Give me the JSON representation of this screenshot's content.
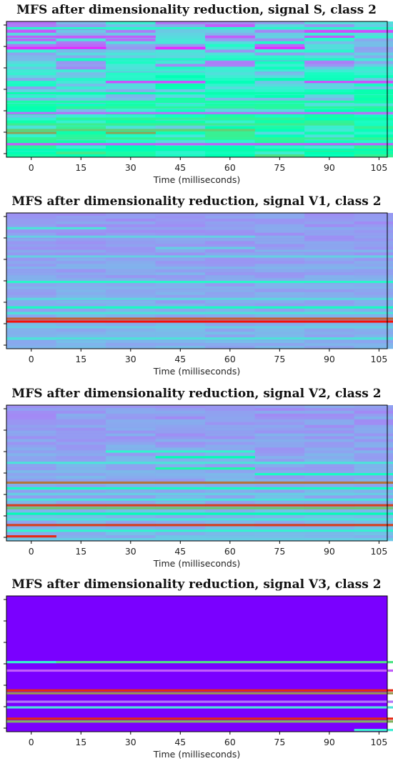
{
  "chart_data": [
    {
      "type": "heatmap",
      "title": "MFS after dimensionality reduction, signal S, class 2",
      "xlabel": "Time (milliseconds)",
      "ylabel": "",
      "xticks": [
        0,
        15,
        30,
        45,
        60,
        75,
        90,
        105
      ],
      "xlim": [
        -7.5,
        107.5
      ],
      "frame_times": [
        0,
        15,
        30,
        45,
        60,
        75,
        90,
        105
      ],
      "colormap": "rainbow",
      "base_color": "#3b63ff",
      "row_count": 48,
      "seed": 11,
      "bands": [
        {
          "row": 2,
          "value": 0.42,
          "cols": [
            0,
            1,
            2,
            3,
            4,
            5,
            6,
            7
          ]
        },
        {
          "row": 5,
          "value": 0.12,
          "cols": [
            0,
            2,
            4,
            6
          ]
        },
        {
          "row": 9,
          "value": 0.05,
          "cols": [
            0,
            1,
            3,
            5
          ]
        },
        {
          "row": 13,
          "value": 0.45,
          "cols": [
            1,
            2,
            3,
            4,
            5,
            6
          ]
        },
        {
          "row": 17,
          "value": 0.38,
          "cols": [
            0,
            1,
            2,
            3,
            4,
            5,
            6,
            7
          ]
        },
        {
          "row": 21,
          "value": 0.1,
          "cols": [
            2,
            3,
            6,
            7
          ]
        },
        {
          "row": 25,
          "value": 0.52,
          "cols": [
            0,
            1,
            2,
            3,
            4,
            5,
            6,
            7
          ]
        },
        {
          "row": 28,
          "value": 0.55,
          "cols": [
            0,
            1,
            2,
            3,
            4,
            5,
            6,
            7
          ]
        },
        {
          "row": 30,
          "value": 0.58,
          "cols": [
            1,
            2,
            3,
            4,
            5,
            6,
            7
          ]
        },
        {
          "row": 32,
          "value": 0.15,
          "cols": [
            0,
            1,
            2,
            3,
            4,
            5,
            6,
            7
          ]
        },
        {
          "row": 34,
          "value": 0.6,
          "cols": [
            1,
            2,
            3,
            4,
            5
          ]
        },
        {
          "row": 36,
          "value": 0.62,
          "cols": [
            0,
            1,
            2,
            3,
            4,
            5,
            6
          ]
        },
        {
          "row": 38,
          "value": 0.7,
          "cols": [
            0,
            1,
            2,
            3,
            4
          ]
        },
        {
          "row": 39,
          "value": 0.78,
          "cols": [
            0,
            2
          ]
        },
        {
          "row": 41,
          "value": 0.6,
          "cols": [
            0,
            1,
            2,
            3,
            4,
            5,
            6,
            7
          ]
        },
        {
          "row": 43,
          "value": 0.12,
          "cols": [
            0,
            1,
            2,
            3,
            4,
            5,
            6,
            7
          ]
        },
        {
          "row": 45,
          "value": 0.5,
          "cols": [
            0,
            1,
            2,
            3,
            4,
            5,
            6,
            7
          ]
        }
      ],
      "noise_level": 0.32
    },
    {
      "type": "heatmap",
      "title": "MFS after dimensionality reduction, signal V1, class  2",
      "xlabel": "Time (milliseconds)",
      "ylabel": "",
      "xticks": [
        0,
        15,
        30,
        45,
        60,
        75,
        90,
        105
      ],
      "xlim": [
        -7.5,
        107.5
      ],
      "frame_times": [
        0,
        15,
        30,
        45,
        60,
        75,
        90,
        105
      ],
      "colormap": "rainbow",
      "base_color": "#5b3cf5",
      "row_count": 48,
      "seed": 23,
      "bands": [
        {
          "row": 5,
          "value": 0.35,
          "cols": [
            0,
            1
          ]
        },
        {
          "row": 8,
          "value": 0.3,
          "cols": [
            0,
            1,
            2,
            3,
            4
          ]
        },
        {
          "row": 12,
          "value": 0.3,
          "cols": [
            3,
            4
          ]
        },
        {
          "row": 13,
          "value": 0.25,
          "cols": [
            5,
            6,
            7
          ]
        },
        {
          "row": 15,
          "value": 0.3,
          "cols": [
            0,
            1,
            2,
            3,
            4,
            5,
            6,
            7
          ]
        },
        {
          "row": 19,
          "value": 0.25,
          "cols": [
            0,
            1,
            2,
            3,
            4,
            5,
            6,
            7
          ]
        },
        {
          "row": 24,
          "value": 0.42,
          "cols": [
            0,
            1,
            2,
            3,
            4,
            5,
            6,
            7
          ]
        },
        {
          "row": 26,
          "value": 0.25,
          "cols": [
            0,
            1,
            2,
            3,
            4,
            5,
            6,
            7
          ]
        },
        {
          "row": 30,
          "value": 0.32,
          "cols": [
            0,
            1,
            2,
            3,
            4,
            5,
            6,
            7
          ]
        },
        {
          "row": 33,
          "value": 0.45,
          "cols": [
            0,
            1,
            2,
            3,
            4,
            5,
            6,
            7
          ]
        },
        {
          "row": 35,
          "value": 0.35,
          "cols": [
            0,
            1,
            2,
            3,
            4,
            5,
            6,
            7
          ]
        },
        {
          "row": 37,
          "value": 0.88,
          "cols": [
            0,
            1,
            2,
            3,
            4,
            5,
            6,
            7
          ]
        },
        {
          "row": 38,
          "value": 0.98,
          "cols": [
            0,
            1,
            2,
            3,
            4,
            5,
            6,
            7
          ]
        },
        {
          "row": 40,
          "value": 0.3,
          "cols": [
            0,
            1,
            2,
            3,
            4,
            5,
            6,
            7
          ]
        },
        {
          "row": 44,
          "value": 0.35,
          "cols": [
            0,
            1,
            2,
            3,
            4,
            5,
            6,
            7
          ]
        }
      ],
      "noise_level": 0.05
    },
    {
      "type": "heatmap",
      "title": "MFS after dimensionality reduction, signal V2, class 2",
      "xlabel": "Time (milliseconds)",
      "ylabel": "",
      "xticks": [
        0,
        15,
        30,
        45,
        60,
        75,
        90,
        105
      ],
      "xlim": [
        -7.5,
        107.5
      ],
      "frame_times": [
        0,
        15,
        30,
        45,
        60,
        75,
        90,
        105
      ],
      "colormap": "rainbow",
      "base_color": "#3f5ef8",
      "row_count": 48,
      "seed": 37,
      "bands": [
        {
          "row": 16,
          "value": 0.4,
          "cols": [
            2,
            3,
            4
          ]
        },
        {
          "row": 18,
          "value": 0.5,
          "cols": [
            3,
            4
          ]
        },
        {
          "row": 20,
          "value": 0.35,
          "cols": [
            0,
            1,
            2,
            3,
            4,
            5,
            6,
            7
          ]
        },
        {
          "row": 22,
          "value": 0.55,
          "cols": [
            3,
            4
          ]
        },
        {
          "row": 24,
          "value": 0.45,
          "cols": [
            5,
            6,
            7
          ]
        },
        {
          "row": 27,
          "value": 0.85,
          "cols": [
            0,
            1,
            2,
            3,
            4,
            5,
            6,
            7
          ]
        },
        {
          "row": 29,
          "value": 0.45,
          "cols": [
            0,
            1,
            2,
            3,
            4,
            5,
            6,
            7
          ]
        },
        {
          "row": 31,
          "value": 0.3,
          "cols": [
            0,
            1,
            2,
            3,
            4,
            5,
            6,
            7
          ]
        },
        {
          "row": 33,
          "value": 0.35,
          "cols": [
            0,
            1,
            2,
            3,
            4,
            5,
            6,
            7
          ]
        },
        {
          "row": 35,
          "value": 0.92,
          "cols": [
            0,
            1,
            2,
            3,
            4,
            5,
            6,
            7
          ]
        },
        {
          "row": 36,
          "value": 0.72,
          "cols": [
            0,
            1,
            2,
            3,
            4,
            5,
            6,
            7
          ]
        },
        {
          "row": 38,
          "value": 0.5,
          "cols": [
            0,
            1,
            2,
            3,
            4,
            5,
            6,
            7
          ]
        },
        {
          "row": 40,
          "value": 0.35,
          "cols": [
            0,
            1,
            2,
            3,
            4,
            5,
            6,
            7
          ]
        },
        {
          "row": 42,
          "value": 0.92,
          "cols": [
            0,
            1,
            2,
            3,
            4,
            5,
            6,
            7
          ]
        },
        {
          "row": 44,
          "value": 0.4,
          "cols": [
            0,
            1,
            2,
            3,
            4,
            5,
            6,
            7
          ]
        },
        {
          "row": 46,
          "value": 0.95,
          "cols": [
            0
          ]
        },
        {
          "row": 47,
          "value": 0.3,
          "cols": [
            1,
            2,
            3,
            4,
            5,
            6,
            7
          ]
        }
      ],
      "noise_level": 0.06
    },
    {
      "type": "heatmap",
      "title": "MFS after dimensionality reduction, signal V3, class 2",
      "xlabel": "Time (milliseconds)",
      "ylabel": "",
      "xticks": [
        0,
        15,
        30,
        45,
        60,
        75,
        90,
        105
      ],
      "xlim": [
        -7.5,
        107.5
      ],
      "frame_times": [
        0,
        15,
        30,
        45,
        60,
        75,
        90,
        105
      ],
      "colormap": "rainbow",
      "base_color": "#7a00ff",
      "row_count": 48,
      "seed": 51,
      "bands": [
        {
          "row": 23,
          "value": 0.4,
          "cols": [
            0
          ]
        },
        {
          "row": 23,
          "value": 0.65,
          "cols": [
            1,
            2,
            3,
            4,
            5,
            6,
            7
          ]
        },
        {
          "row": 26,
          "value": 0.12,
          "cols": [
            0,
            1,
            2,
            3,
            4,
            5,
            6,
            7
          ]
        },
        {
          "row": 33,
          "value": 0.95,
          "cols": [
            0,
            1,
            2,
            3,
            4,
            5,
            6,
            7
          ]
        },
        {
          "row": 34,
          "value": 0.8,
          "cols": [
            0,
            1,
            2,
            3,
            4,
            5,
            6,
            7
          ]
        },
        {
          "row": 37,
          "value": 0.15,
          "cols": [
            0,
            1,
            2,
            3,
            4,
            5,
            6,
            7
          ]
        },
        {
          "row": 39,
          "value": 0.35,
          "cols": [
            0,
            1,
            2,
            3,
            4,
            5,
            6,
            7
          ]
        },
        {
          "row": 43,
          "value": 0.95,
          "cols": [
            0,
            1,
            2,
            3,
            4,
            5,
            6,
            7
          ]
        },
        {
          "row": 44,
          "value": 0.75,
          "cols": [
            0,
            1,
            2,
            3,
            4,
            5,
            6,
            7
          ]
        },
        {
          "row": 47,
          "value": 0.38,
          "cols": [
            7
          ]
        }
      ],
      "noise_level": 0.0
    }
  ]
}
